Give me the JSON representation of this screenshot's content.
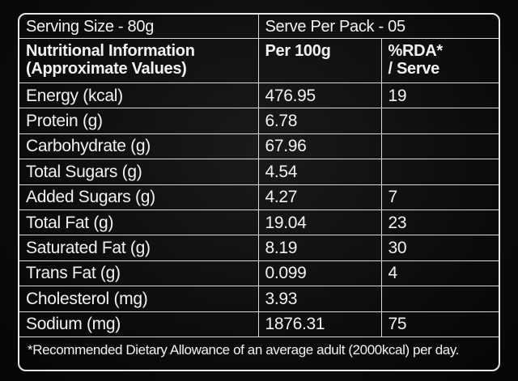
{
  "header": {
    "serving_size": "Serving Size - 80g",
    "serve_per_pack": "Serve Per Pack - 05"
  },
  "columns": {
    "nutrient_line1": "Nutritional Information",
    "nutrient_line2": "(Approximate Values)",
    "per100g": "Per 100g",
    "rda_line1": "%RDA*",
    "rda_line2": "/ Serve"
  },
  "rows": [
    {
      "nutrient": "Energy (kcal)",
      "per100g": "476.95",
      "rda": "19"
    },
    {
      "nutrient": "Protein (g)",
      "per100g": "6.78",
      "rda": ""
    },
    {
      "nutrient": "Carbohydrate (g)",
      "per100g": "67.96",
      "rda": ""
    },
    {
      "nutrient": "Total Sugars (g)",
      "per100g": "4.54",
      "rda": ""
    },
    {
      "nutrient": "Added Sugars (g)",
      "per100g": "4.27",
      "rda": "7"
    },
    {
      "nutrient": "Total Fat (g)",
      "per100g": "19.04",
      "rda": "23"
    },
    {
      "nutrient": "Saturated Fat (g)",
      "per100g": "8.19",
      "rda": "30"
    },
    {
      "nutrient": "Trans Fat (g)",
      "per100g": "0.099",
      "rda": "4"
    },
    {
      "nutrient": "Cholesterol (mg)",
      "per100g": "3.93",
      "rda": ""
    },
    {
      "nutrient": "Sodium (mg)",
      "per100g": "1876.31",
      "rda": "75"
    }
  ],
  "footnote": "*Recommended Dietary Allowance of an average adult (2000kcal) per day."
}
